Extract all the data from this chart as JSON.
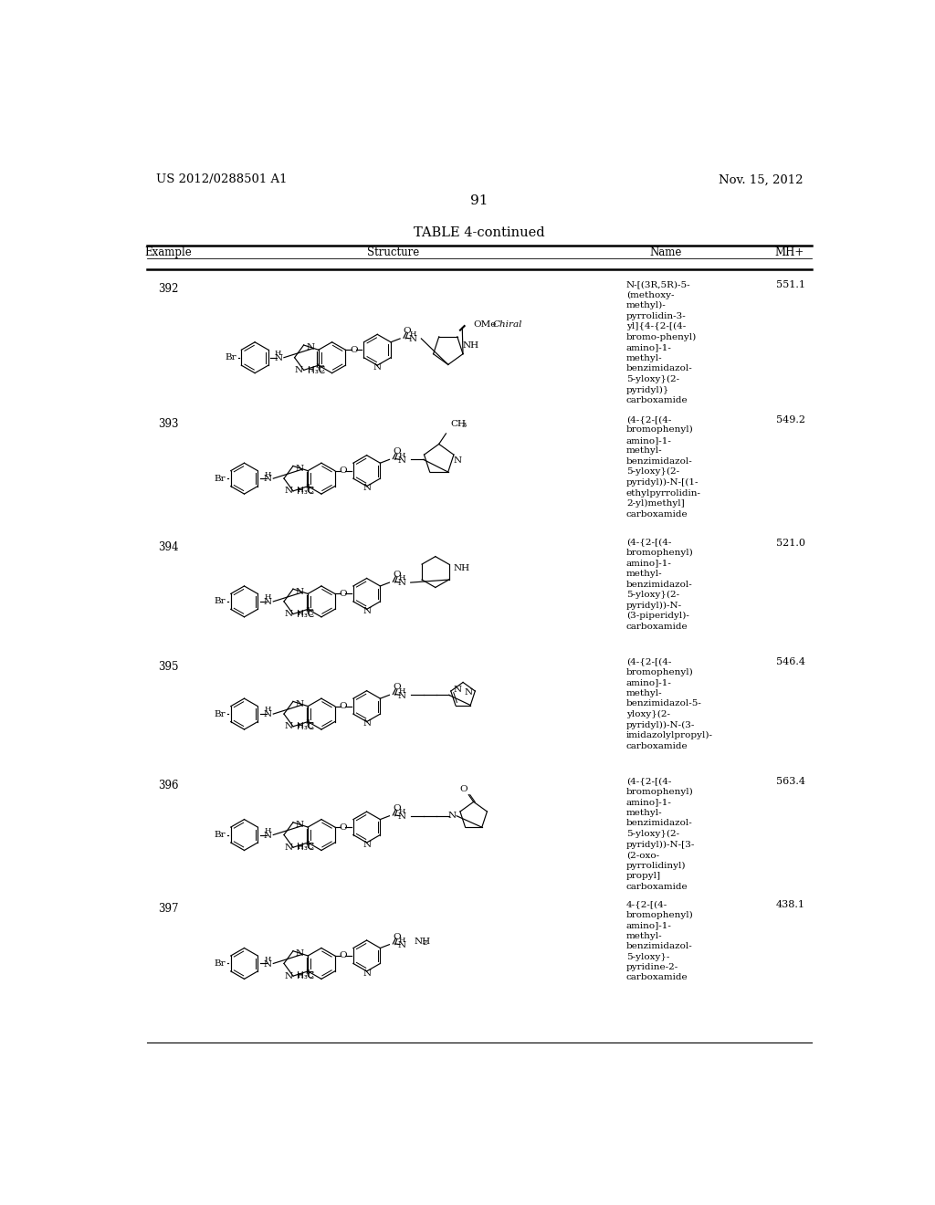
{
  "page_header_left": "US 2012/0288501 A1",
  "page_header_right": "Nov. 15, 2012",
  "page_number": "91",
  "table_title": "TABLE 4-continued",
  "background_color": "#ffffff",
  "text_color": "#000000",
  "rows": [
    {
      "example": "392",
      "name": "N-[(3R,5R)-5-\n(methoxy-\nmethyl)-\npyrrolidin-3-\nyl]{4-{2-[(4-\nbromo-phenyl)\namino]-1-\nmethyl-\nbenzimidazol-\n5-yloxy}(2-\npyridyl)}\ncarboxamide",
      "mh": "551.1"
    },
    {
      "example": "393",
      "name": "(4-{2-[(4-\nbromophenyl)\namino]-1-\nmethyl-\nbenzimidazol-\n5-yloxy}(2-\npyridyl))-N-[(1-\nethylpyrrolidin-\n2-yl)methyl]\ncarboxamide",
      "mh": "549.2"
    },
    {
      "example": "394",
      "name": "(4-{2-[(4-\nbromophenyl)\namino]-1-\nmethyl-\nbenzimidazol-\n5-yloxy}(2-\npyridyl))-N-\n(3-piperidyl)-\ncarboxamide",
      "mh": "521.0"
    },
    {
      "example": "395",
      "name": "(4-{2-[(4-\nbromophenyl)\namino]-1-\nmethyl-\nbenzimidazol-5-\nyloxy}(2-\npyridyl))-N-(3-\nimidazolylpropyl)-\ncarboxamide",
      "mh": "546.4"
    },
    {
      "example": "396",
      "name": "(4-{2-[(4-\nbromophenyl)\namino]-1-\nmethyl-\nbenzimidazol-\n5-yloxy}(2-\npyridyl))-N-[3-\n(2-oxo-\npyrrolidinyl)\npropyl]\ncarboxamide",
      "mh": "563.4"
    },
    {
      "example": "397",
      "name": "4-{2-[(4-\nbromophenyl)\namino]-1-\nmethyl-\nbenzimidazol-\n5-yloxy}-\npyridine-2-\ncarboxamide",
      "mh": "438.1"
    }
  ]
}
